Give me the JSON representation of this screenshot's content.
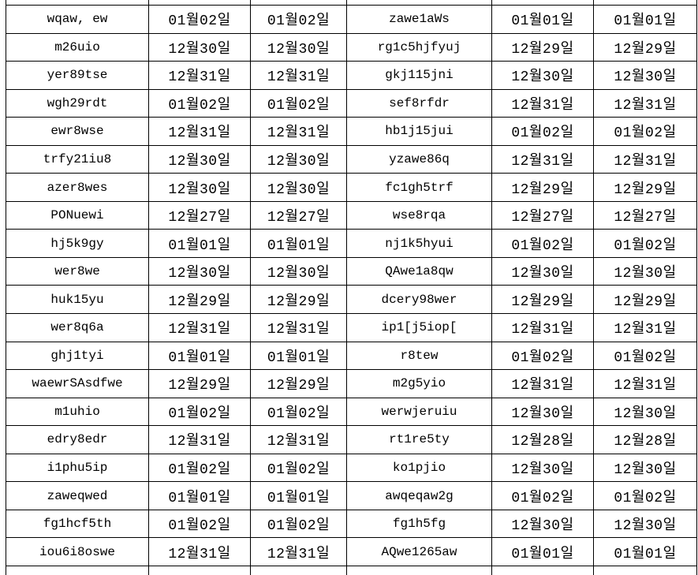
{
  "colors": {
    "background": "#ffffff",
    "grid_line": "#000000",
    "text": "#000000"
  },
  "table": {
    "column_kinds": [
      "id",
      "date",
      "date",
      "id",
      "date",
      "date"
    ],
    "rows": [
      [
        "wqaw, ew",
        "01월02일",
        "01월02일",
        "zawe1aWs",
        "01월01일",
        "01월01일"
      ],
      [
        "m26uio",
        "12월30일",
        "12월30일",
        "rg1c5hjfyuj",
        "12월29일",
        "12월29일"
      ],
      [
        "yer89tse",
        "12월31일",
        "12월31일",
        "gkj115jni",
        "12월30일",
        "12월30일"
      ],
      [
        "wgh29rdt",
        "01월02일",
        "01월02일",
        "sef8rfdr",
        "12월31일",
        "12월31일"
      ],
      [
        "ewr8wse",
        "12월31일",
        "12월31일",
        "hb1j15jui",
        "01월02일",
        "01월02일"
      ],
      [
        "trfy21iu8",
        "12월30일",
        "12월30일",
        "yzawe86q",
        "12월31일",
        "12월31일"
      ],
      [
        "azer8wes",
        "12월30일",
        "12월30일",
        "fc1gh5trf",
        "12월29일",
        "12월29일"
      ],
      [
        "PONuewi",
        "12월27일",
        "12월27일",
        "wse8rqa",
        "12월27일",
        "12월27일"
      ],
      [
        "hj5k9gy",
        "01월01일",
        "01월01일",
        "nj1k5hyui",
        "01월02일",
        "01월02일"
      ],
      [
        "wer8we",
        "12월30일",
        "12월30일",
        "QAwe1a8qw",
        "12월30일",
        "12월30일"
      ],
      [
        "huk15yu",
        "12월29일",
        "12월29일",
        "dcery98wer",
        "12월29일",
        "12월29일"
      ],
      [
        "wer8q6a",
        "12월31일",
        "12월31일",
        "ip1[j5iop[",
        "12월31일",
        "12월31일"
      ],
      [
        "ghj1tyi",
        "01월01일",
        "01월01일",
        "r8tew",
        "01월02일",
        "01월02일"
      ],
      [
        "waewrSAsdfwe",
        "12월29일",
        "12월29일",
        "m2g5yio",
        "12월31일",
        "12월31일"
      ],
      [
        "m1uhio",
        "01월02일",
        "01월02일",
        "werwjeruiu",
        "12월30일",
        "12월30일"
      ],
      [
        "edry8edr",
        "12월31일",
        "12월31일",
        "rt1re5ty",
        "12월28일",
        "12월28일"
      ],
      [
        "i1phu5ip",
        "01월02일",
        "01월02일",
        "ko1pjio",
        "12월30일",
        "12월30일"
      ],
      [
        "zaweqwed",
        "01월01일",
        "01월01일",
        "awqeqaw2g",
        "01월02일",
        "01월02일"
      ],
      [
        "fg1hcf5th",
        "01월02일",
        "01월02일",
        "fg1h5fg",
        "12월30일",
        "12월30일"
      ],
      [
        "iou6i8oswe",
        "12월31일",
        "12월31일",
        "AQwe1265aw",
        "01월01일",
        "01월01일"
      ]
    ]
  }
}
